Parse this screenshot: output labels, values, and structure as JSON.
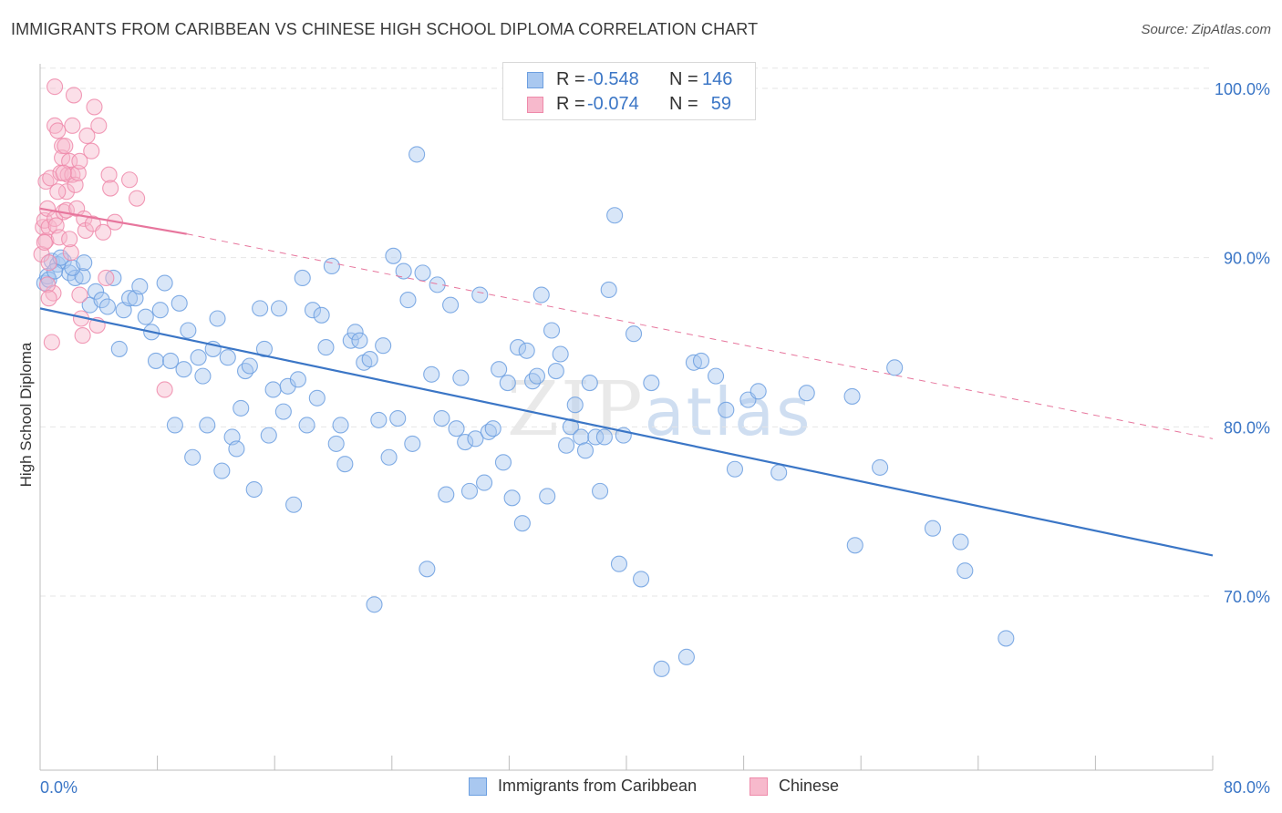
{
  "header": {
    "title": "IMMIGRANTS FROM CARIBBEAN VS CHINESE HIGH SCHOOL DIPLOMA CORRELATION CHART",
    "source": "Source: ZipAtlas.com"
  },
  "watermark": {
    "zip": "ZIP",
    "atlas": "atlas"
  },
  "legend": {
    "rows": [
      {
        "r_label": "R =",
        "r_value": "-0.548",
        "n_label": "N =",
        "n_value": "146",
        "color": "#a9c8f0",
        "edge": "#6c9fe0"
      },
      {
        "r_label": "R =",
        "r_value": "-0.074",
        "n_label": "N =",
        "n_value": "59",
        "color": "#f7b9cc",
        "edge": "#ee8aaa"
      }
    ]
  },
  "bottom_legend": {
    "items": [
      {
        "label": "Immigrants from Caribbean",
        "color": "#a9c8f0",
        "edge": "#6c9fe0"
      },
      {
        "label": "Chinese",
        "color": "#f7b9cc",
        "edge": "#ee8aaa"
      }
    ]
  },
  "chart_data": {
    "type": "scatter",
    "title": "IMMIGRANTS FROM CARIBBEAN VS CHINESE HIGH SCHOOL DIPLOMA CORRELATION CHART",
    "xlabel": "",
    "ylabel": "High School Diploma",
    "xlim": [
      0,
      80
    ],
    "ylim": [
      60.5,
      102
    ],
    "x_tick_labels": [
      "0.0%",
      "80.0%"
    ],
    "y_ticks": [
      70,
      80,
      90,
      100
    ],
    "y_tick_labels": [
      "70.0%",
      "80.0%",
      "90.0%",
      "100.0%"
    ],
    "grid": true,
    "legend_position": "top-center",
    "series": [
      {
        "name": "Immigrants from Caribbean",
        "color": "#6c9fe0",
        "fill": "#a9c8f0",
        "trend": {
          "x": [
            0,
            80
          ],
          "y": [
            87.0,
            72.4
          ],
          "style": "solid"
        },
        "points": [
          [
            0.3,
            88.5
          ],
          [
            0.5,
            88.9
          ],
          [
            0.8,
            89.8
          ],
          [
            1.2,
            89.6
          ],
          [
            1.6,
            89.8
          ],
          [
            2.0,
            89.1
          ],
          [
            2.4,
            88.8
          ],
          [
            2.9,
            88.9
          ],
          [
            3.4,
            87.2
          ],
          [
            3.8,
            88.0
          ],
          [
            4.2,
            87.5
          ],
          [
            4.6,
            87.1
          ],
          [
            5.0,
            88.8
          ],
          [
            5.4,
            84.6
          ],
          [
            5.7,
            86.9
          ],
          [
            6.1,
            87.6
          ],
          [
            6.5,
            87.6
          ],
          [
            6.8,
            88.3
          ],
          [
            7.2,
            86.5
          ],
          [
            7.6,
            85.6
          ],
          [
            7.9,
            83.9
          ],
          [
            8.2,
            86.9
          ],
          [
            8.5,
            88.5
          ],
          [
            8.9,
            83.9
          ],
          [
            9.2,
            80.1
          ],
          [
            9.5,
            87.3
          ],
          [
            9.8,
            83.4
          ],
          [
            10.1,
            85.7
          ],
          [
            10.4,
            78.2
          ],
          [
            10.8,
            84.1
          ],
          [
            11.1,
            83.0
          ],
          [
            11.4,
            80.1
          ],
          [
            11.8,
            84.6
          ],
          [
            12.1,
            86.4
          ],
          [
            12.4,
            77.4
          ],
          [
            12.8,
            84.1
          ],
          [
            13.1,
            79.4
          ],
          [
            13.4,
            78.7
          ],
          [
            13.7,
            81.1
          ],
          [
            14.0,
            83.3
          ],
          [
            14.3,
            83.6
          ],
          [
            14.6,
            76.3
          ],
          [
            15.0,
            87.0
          ],
          [
            15.3,
            84.6
          ],
          [
            15.6,
            79.5
          ],
          [
            15.9,
            82.2
          ],
          [
            16.3,
            87.0
          ],
          [
            16.6,
            80.9
          ],
          [
            16.9,
            82.4
          ],
          [
            17.3,
            75.4
          ],
          [
            17.6,
            82.8
          ],
          [
            17.9,
            88.8
          ],
          [
            18.2,
            80.1
          ],
          [
            18.6,
            86.9
          ],
          [
            18.9,
            81.7
          ],
          [
            19.2,
            86.6
          ],
          [
            19.5,
            84.7
          ],
          [
            19.9,
            89.5
          ],
          [
            20.2,
            79.0
          ],
          [
            20.5,
            80.1
          ],
          [
            20.8,
            77.8
          ],
          [
            21.2,
            85.1
          ],
          [
            21.5,
            85.6
          ],
          [
            21.8,
            85.1
          ],
          [
            22.1,
            83.8
          ],
          [
            22.5,
            84.0
          ],
          [
            22.8,
            69.5
          ],
          [
            23.1,
            80.4
          ],
          [
            23.4,
            84.8
          ],
          [
            23.8,
            78.2
          ],
          [
            24.1,
            90.1
          ],
          [
            24.4,
            80.5
          ],
          [
            24.8,
            89.2
          ],
          [
            25.1,
            87.5
          ],
          [
            25.4,
            79.0
          ],
          [
            25.7,
            96.1
          ],
          [
            26.1,
            89.1
          ],
          [
            26.4,
            71.6
          ],
          [
            26.7,
            83.1
          ],
          [
            27.1,
            88.4
          ],
          [
            27.4,
            80.5
          ],
          [
            27.7,
            76.0
          ],
          [
            28.0,
            87.2
          ],
          [
            28.4,
            79.9
          ],
          [
            28.7,
            82.9
          ],
          [
            29.0,
            79.1
          ],
          [
            29.3,
            76.2
          ],
          [
            29.7,
            79.3
          ],
          [
            30.0,
            87.8
          ],
          [
            30.3,
            76.7
          ],
          [
            30.6,
            79.7
          ],
          [
            30.9,
            79.9
          ],
          [
            31.3,
            83.4
          ],
          [
            31.6,
            77.9
          ],
          [
            31.9,
            82.6
          ],
          [
            32.2,
            75.8
          ],
          [
            32.6,
            84.7
          ],
          [
            32.9,
            74.3
          ],
          [
            33.2,
            84.5
          ],
          [
            33.6,
            82.7
          ],
          [
            33.9,
            83.0
          ],
          [
            34.2,
            87.8
          ],
          [
            34.6,
            75.9
          ],
          [
            34.9,
            85.7
          ],
          [
            35.2,
            83.3
          ],
          [
            35.5,
            84.3
          ],
          [
            35.9,
            78.9
          ],
          [
            36.2,
            80.0
          ],
          [
            36.5,
            81.3
          ],
          [
            36.9,
            79.4
          ],
          [
            37.2,
            78.6
          ],
          [
            37.5,
            82.6
          ],
          [
            37.9,
            79.4
          ],
          [
            38.2,
            76.2
          ],
          [
            38.5,
            79.4
          ],
          [
            38.8,
            88.1
          ],
          [
            39.2,
            92.5
          ],
          [
            39.5,
            71.9
          ],
          [
            39.8,
            79.5
          ],
          [
            40.5,
            85.5
          ],
          [
            41.0,
            71.0
          ],
          [
            41.7,
            82.6
          ],
          [
            42.4,
            65.7
          ],
          [
            44.1,
            66.4
          ],
          [
            44.6,
            83.8
          ],
          [
            45.1,
            83.9
          ],
          [
            46.1,
            83.0
          ],
          [
            46.8,
            81.0
          ],
          [
            47.4,
            77.5
          ],
          [
            48.3,
            81.6
          ],
          [
            49.0,
            82.1
          ],
          [
            50.4,
            77.3
          ],
          [
            52.3,
            82.0
          ],
          [
            55.6,
            73.0
          ],
          [
            55.4,
            81.8
          ],
          [
            57.3,
            77.6
          ],
          [
            58.3,
            83.5
          ],
          [
            60.9,
            74.0
          ],
          [
            62.8,
            73.2
          ],
          [
            63.1,
            71.5
          ],
          [
            65.9,
            67.5
          ],
          [
            0.6,
            88.7
          ],
          [
            1.0,
            89.2
          ],
          [
            1.4,
            90.0
          ],
          [
            2.2,
            89.4
          ],
          [
            3.0,
            89.7
          ]
        ]
      },
      {
        "name": "Chinese",
        "color": "#ee8aaa",
        "fill": "#f7b9cc",
        "trend": {
          "x": [
            0,
            10
          ],
          "y": [
            92.9,
            91.4
          ],
          "style": "solid",
          "extended": {
            "x": [
              10,
              80
            ],
            "y": [
              91.4,
              79.3
            ],
            "style": "dashed"
          }
        },
        "points": [
          [
            0.1,
            90.2
          ],
          [
            0.2,
            91.8
          ],
          [
            0.3,
            92.2
          ],
          [
            0.4,
            91.0
          ],
          [
            0.4,
            94.5
          ],
          [
            0.5,
            92.9
          ],
          [
            0.6,
            89.7
          ],
          [
            0.6,
            91.8
          ],
          [
            0.7,
            94.7
          ],
          [
            0.8,
            85.0
          ],
          [
            0.9,
            87.9
          ],
          [
            1.0,
            92.3
          ],
          [
            1.0,
            97.8
          ],
          [
            1.1,
            91.9
          ],
          [
            1.2,
            97.5
          ],
          [
            1.3,
            91.2
          ],
          [
            1.4,
            95.0
          ],
          [
            1.5,
            96.6
          ],
          [
            1.5,
            95.9
          ],
          [
            1.6,
            92.7
          ],
          [
            1.7,
            96.6
          ],
          [
            1.8,
            93.9
          ],
          [
            1.8,
            92.8
          ],
          [
            1.9,
            94.9
          ],
          [
            2.0,
            95.7
          ],
          [
            2.1,
            90.3
          ],
          [
            2.2,
            97.8
          ],
          [
            2.2,
            94.9
          ],
          [
            2.3,
            99.6
          ],
          [
            2.4,
            94.3
          ],
          [
            2.5,
            92.9
          ],
          [
            2.6,
            95.0
          ],
          [
            2.7,
            95.7
          ],
          [
            2.8,
            86.4
          ],
          [
            2.9,
            85.4
          ],
          [
            3.0,
            92.3
          ],
          [
            3.1,
            91.6
          ],
          [
            3.2,
            97.2
          ],
          [
            3.5,
            96.3
          ],
          [
            3.6,
            92.0
          ],
          [
            3.7,
            98.9
          ],
          [
            3.9,
            86.0
          ],
          [
            4.0,
            97.8
          ],
          [
            4.3,
            91.5
          ],
          [
            4.5,
            88.8
          ],
          [
            4.7,
            94.9
          ],
          [
            4.8,
            94.1
          ],
          [
            5.1,
            92.1
          ],
          [
            6.1,
            94.6
          ],
          [
            6.6,
            93.5
          ],
          [
            8.5,
            82.2
          ],
          [
            1.0,
            100.1
          ],
          [
            0.5,
            88.4
          ],
          [
            0.6,
            87.6
          ],
          [
            1.2,
            93.9
          ],
          [
            2.7,
            87.8
          ],
          [
            0.3,
            90.9
          ],
          [
            1.6,
            95.0
          ],
          [
            2.0,
            91.1
          ]
        ]
      }
    ]
  }
}
